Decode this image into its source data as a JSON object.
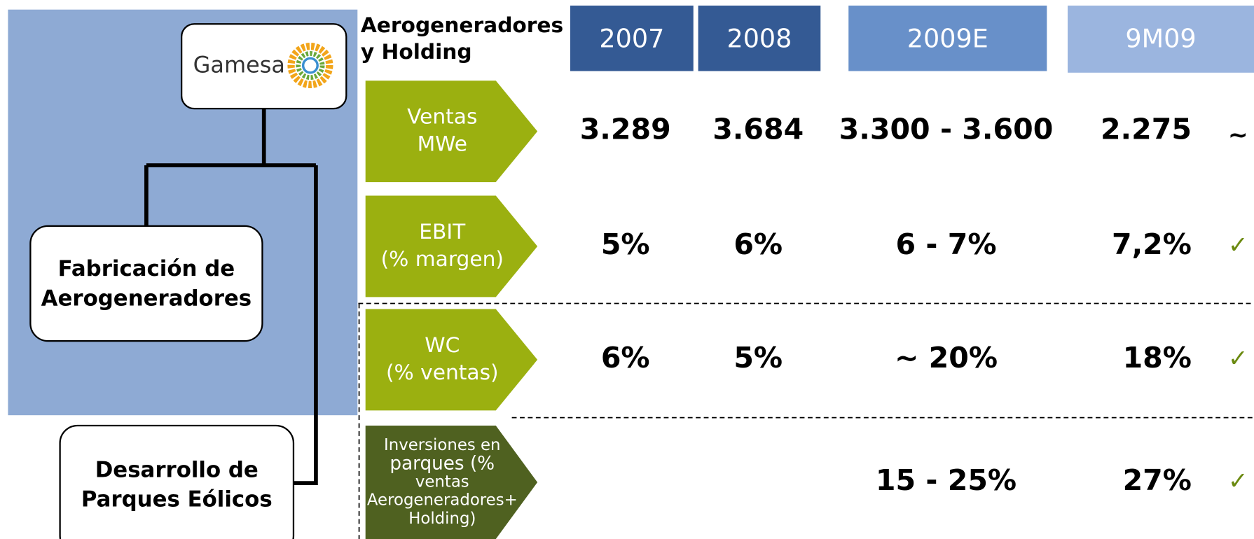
{
  "org": {
    "logo": "Gamesa",
    "boxes": [
      [
        "Fabricación  de",
        "Aerogeneradores"
      ],
      [
        "Desarrollo de",
        "Parques Eólicos"
      ]
    ]
  },
  "table": {
    "corner": [
      "Aerogeneradores",
      "y Holding"
    ],
    "columns": [
      "2007",
      "2008",
      "2009E",
      "9M09"
    ],
    "rows": [
      {
        "label": [
          "Ventas",
          "MWe"
        ],
        "values": [
          "3.289",
          "3.684",
          "3.300 - 3.600",
          "2.275"
        ],
        "status": "~"
      },
      {
        "label": [
          "EBIT",
          "(% margen)"
        ],
        "values": [
          "5%",
          "6%",
          "6 - 7%",
          "7,2%"
        ],
        "status": "✓"
      },
      {
        "label": [
          "WC",
          "(% ventas)"
        ],
        "values": [
          "6%",
          "5%",
          "~ 20%",
          "18%"
        ],
        "status": "✓"
      },
      {
        "label": [
          "Inversiones en",
          "parques (%",
          "ventas",
          "Aerogeneradores+",
          "Holding)"
        ],
        "values": [
          null,
          null,
          "15 - 25%",
          "27%"
        ],
        "status": "✓"
      }
    ]
  }
}
